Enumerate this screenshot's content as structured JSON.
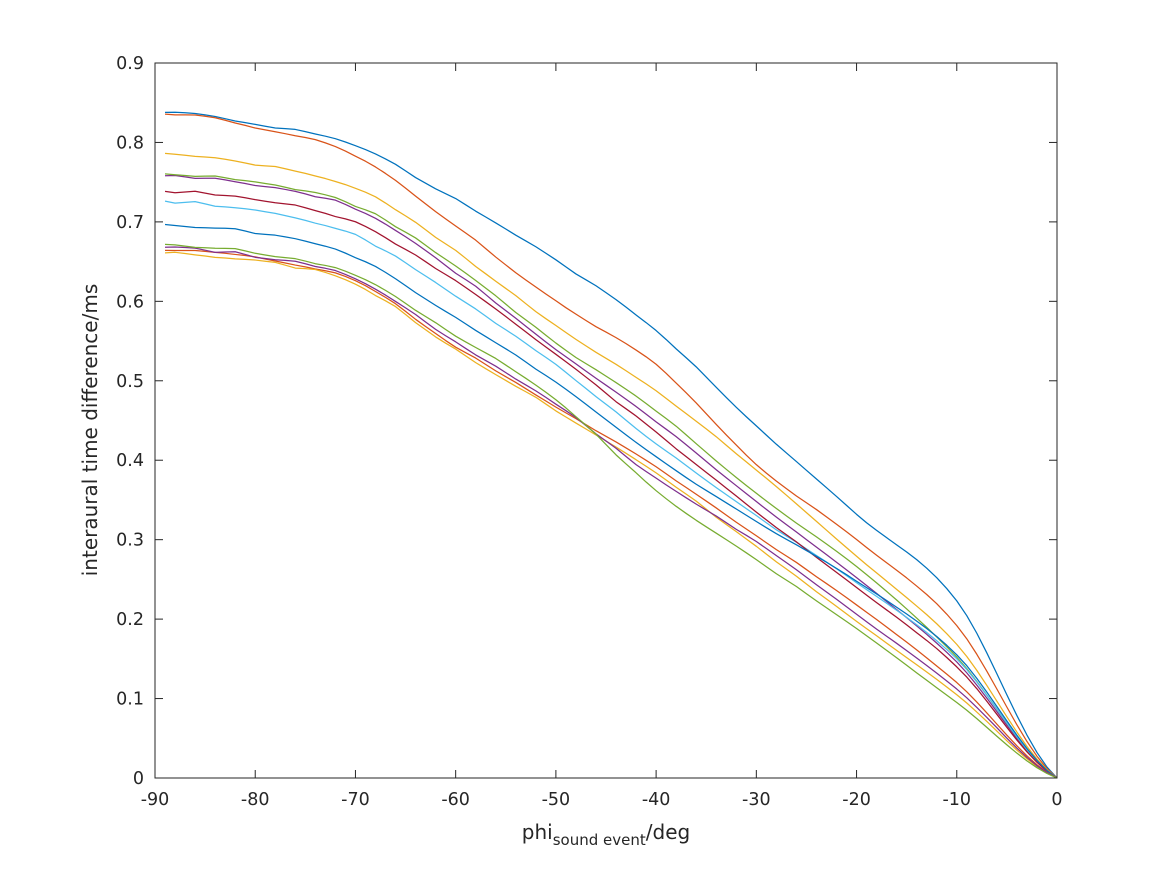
{
  "figure": {
    "background": "#ffffff",
    "axis_color": "#262626",
    "tick_label_color": "#262626"
  },
  "chart_data": {
    "type": "line",
    "title": "",
    "xlabel": "phi_{sound event}/deg",
    "xlabel_parts": {
      "main": "phi",
      "sub": "sound event",
      "suffix": "/deg"
    },
    "ylabel": "interaural time difference/ms",
    "xlim": [
      -90,
      0
    ],
    "ylim": [
      0,
      0.9
    ],
    "x_ticks": [
      -90,
      -80,
      -70,
      -60,
      -50,
      -40,
      -30,
      -20,
      -10,
      0
    ],
    "x_tick_labels": [
      "-90",
      "-80",
      "-70",
      "-60",
      "-50",
      "-40",
      "-30",
      "-20",
      "-10",
      "0"
    ],
    "y_ticks": [
      0,
      0.1,
      0.2,
      0.3,
      0.4,
      0.5,
      0.6,
      0.7,
      0.8,
      0.9
    ],
    "y_tick_labels": [
      "0",
      "0.1",
      "0.2",
      "0.3",
      "0.4",
      "0.5",
      "0.6",
      "0.7",
      "0.8",
      "0.9"
    ],
    "grid": false,
    "box": true,
    "legend": "none",
    "x": [
      -89,
      -80,
      -70,
      -60,
      -50,
      -40,
      -30,
      -20,
      -10,
      0
    ],
    "series": [
      {
        "name": "line-01-blue",
        "color": "#0072BD",
        "values": [
          0.838,
          0.824,
          0.795,
          0.728,
          0.652,
          0.563,
          0.443,
          0.332,
          0.223,
          0.0
        ]
      },
      {
        "name": "line-02-orange",
        "color": "#D95319",
        "values": [
          0.836,
          0.82,
          0.783,
          0.695,
          0.6,
          0.52,
          0.395,
          0.3,
          0.192,
          0.0
        ]
      },
      {
        "name": "line-03-yellow",
        "color": "#EDB120",
        "values": [
          0.785,
          0.772,
          0.743,
          0.663,
          0.57,
          0.487,
          0.388,
          0.279,
          0.168,
          0.0
        ]
      },
      {
        "name": "line-04-purple",
        "color": "#7E2F8E",
        "values": [
          0.758,
          0.747,
          0.716,
          0.636,
          0.54,
          0.449,
          0.348,
          0.252,
          0.146,
          0.0
        ]
      },
      {
        "name": "line-05-green",
        "color": "#77AC30",
        "values": [
          0.761,
          0.75,
          0.721,
          0.644,
          0.548,
          0.462,
          0.358,
          0.266,
          0.152,
          0.0
        ]
      },
      {
        "name": "line-06-cyan",
        "color": "#4DBEEE",
        "values": [
          0.726,
          0.714,
          0.683,
          0.606,
          0.52,
          0.421,
          0.33,
          0.246,
          0.15,
          0.0
        ]
      },
      {
        "name": "line-07-darkred",
        "color": "#A2142F",
        "values": [
          0.739,
          0.729,
          0.699,
          0.625,
          0.533,
          0.435,
          0.335,
          0.24,
          0.14,
          0.0
        ]
      },
      {
        "name": "line-08-blue",
        "color": "#0072BD",
        "values": [
          0.697,
          0.686,
          0.656,
          0.579,
          0.498,
          0.404,
          0.323,
          0.248,
          0.155,
          0.0
        ]
      },
      {
        "name": "line-09-orange",
        "color": "#D95319",
        "values": [
          0.664,
          0.654,
          0.625,
          0.543,
          0.468,
          0.391,
          0.305,
          0.218,
          0.12,
          0.0
        ]
      },
      {
        "name": "line-10-yellow",
        "color": "#EDB120",
        "values": [
          0.661,
          0.651,
          0.622,
          0.539,
          0.463,
          0.384,
          0.291,
          0.197,
          0.105,
          0.0
        ]
      },
      {
        "name": "line-11-purple",
        "color": "#7E2F8E",
        "values": [
          0.667,
          0.657,
          0.628,
          0.548,
          0.471,
          0.377,
          0.297,
          0.206,
          0.112,
          0.0
        ]
      },
      {
        "name": "line-12-green",
        "color": "#77AC30",
        "values": [
          0.671,
          0.661,
          0.633,
          0.557,
          0.477,
          0.362,
          0.275,
          0.188,
          0.095,
          0.0
        ]
      }
    ]
  }
}
